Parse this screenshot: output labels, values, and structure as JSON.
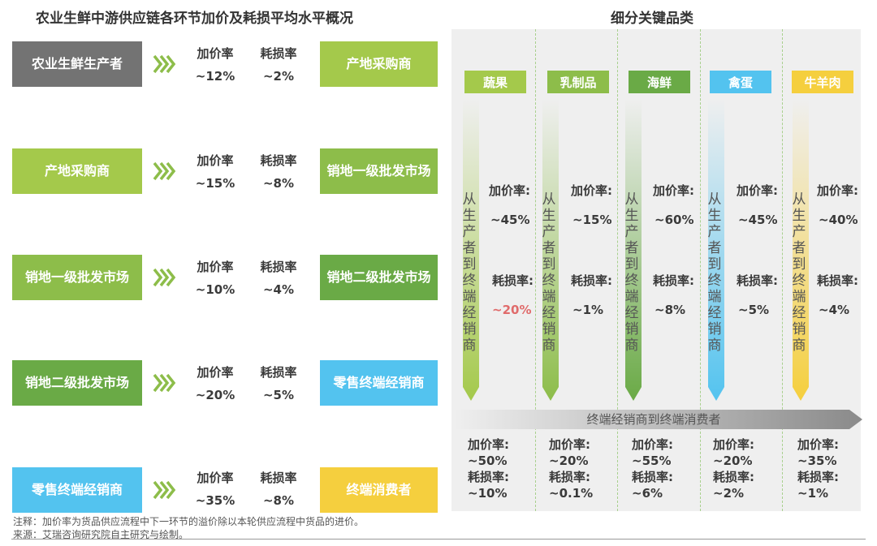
{
  "left_title": "农业生鲜中游供应链各环节加价及耗损平均水平概况",
  "right_title": "细分关键品类",
  "colors": {
    "gray": "#737373",
    "light_green": "#a4c94b",
    "green": "#8dbd4a",
    "dark_green": "#6aaa46",
    "cyan": "#53c3ef",
    "yellow": "#f5cf3e"
  },
  "flow": [
    {
      "from": "农业生鲜生产者",
      "markup_label": "加价率",
      "markup": "~12%",
      "loss_label": "耗损率",
      "loss": "~2%",
      "to": "产地采购商"
    },
    {
      "from": "产地采购商",
      "markup_label": "加价率",
      "markup": "~15%",
      "loss_label": "耗损率",
      "loss": "~8%",
      "to": "销地一级批发市场"
    },
    {
      "from": "销地一级批发市场",
      "markup_label": "加价率",
      "markup": "~10%",
      "loss_label": "耗损率",
      "loss": "~4%",
      "to": "销地二级批发市场"
    },
    {
      "from": "销地二级批发市场",
      "markup_label": "加价率",
      "markup": "~20%",
      "loss_label": "耗损率",
      "loss": "~5%",
      "to": "零售终端经销商"
    },
    {
      "from": "零售终端经销商",
      "markup_label": "加价率",
      "markup": "~35%",
      "loss_label": "耗损率",
      "loss": "~8%",
      "to": "终端消费者"
    }
  ],
  "categories": [
    {
      "name": "蔬果",
      "vertical": "从生产者到终端经销商",
      "markup_label": "加价率:",
      "markup": "~45%",
      "loss_label": "耗损率:",
      "loss": "~20%",
      "retail_markup_label": "加价率:",
      "retail_markup": "~50%",
      "retail_loss_label": "耗损率:",
      "retail_loss": "~10%"
    },
    {
      "name": "乳制品",
      "vertical": "从生产者到终端经销商",
      "markup_label": "加价率:",
      "markup": "~15%",
      "loss_label": "耗损率:",
      "loss": "~1%",
      "retail_markup_label": "加价率:",
      "retail_markup": "~20%",
      "retail_loss_label": "耗损率:",
      "retail_loss": "~0.1%"
    },
    {
      "name": "海鲜",
      "vertical": "从生产者到终端经销商",
      "markup_label": "加价率:",
      "markup": "~60%",
      "loss_label": "耗损率:",
      "loss": "~8%",
      "retail_markup_label": "加价率:",
      "retail_markup": "~55%",
      "retail_loss_label": "耗损率:",
      "retail_loss": "~6%"
    },
    {
      "name": "禽蛋",
      "vertical": "从生产者到终端经销商",
      "markup_label": "加价率:",
      "markup": "~45%",
      "loss_label": "耗损率:",
      "loss": "~5%",
      "retail_markup_label": "加价率:",
      "retail_markup": "~20%",
      "retail_loss_label": "耗损率:",
      "retail_loss": "~2%"
    },
    {
      "name": "牛羊肉",
      "vertical": "从生产者到终端经销商",
      "markup_label": "加价率:",
      "markup": "~40%",
      "loss_label": "耗损率:",
      "loss": "~4%",
      "retail_markup_label": "加价率:",
      "retail_markup": "~35%",
      "retail_loss_label": "耗损率:",
      "retail_loss": "~1%"
    }
  ],
  "consumer_arrow_label": "终端经销商到终端消费者",
  "note": "注释：加价率为货品供应流程中下一环节的溢价除以本轮供应流程中货品的进价。",
  "source": "来源：艾瑞咨询研究院自主研究与绘制。"
}
